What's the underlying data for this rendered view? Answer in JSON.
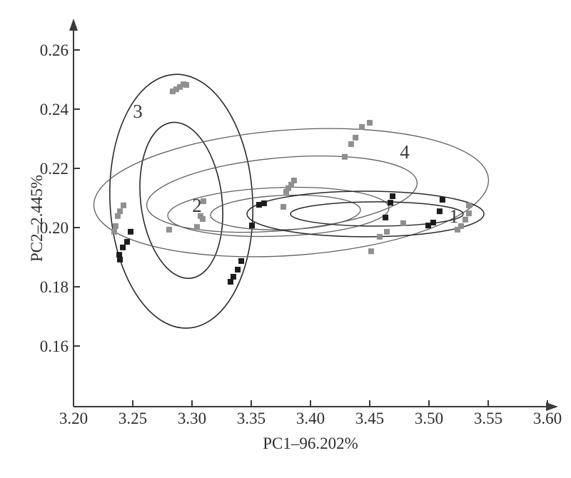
{
  "chart_data": {
    "type": "scatter",
    "title": "",
    "xlabel": "PC1–96.202%",
    "ylabel": "PC2–2.445%",
    "xlim": [
      3.2,
      3.6
    ],
    "ylim": [
      0.14,
      0.27
    ],
    "x_ticks": [
      3.2,
      3.25,
      3.3,
      3.35,
      3.4,
      3.45,
      3.5,
      3.55,
      3.6
    ],
    "y_ticks": [
      0.16,
      0.18,
      0.2,
      0.22,
      0.24,
      0.26
    ],
    "grid": false,
    "legend_position": "none",
    "marker": "square",
    "colors": {
      "axis": "#3a3a3a",
      "tick_text": "#2e2e2e",
      "black_marker": "#1c1c1c",
      "gray_marker": "#8f8f8f",
      "dark_ellipse": "#2a2a2a",
      "gray_ellipse": "#5f5f5f"
    },
    "group_labels": [
      {
        "text": "1",
        "x": 3.5211,
        "y": 0.2039
      },
      {
        "text": "2",
        "x": 3.3042,
        "y": 0.2075
      },
      {
        "text": "3",
        "x": 3.2542,
        "y": 0.2393
      },
      {
        "text": "4",
        "x": 3.4795,
        "y": 0.2255
      }
    ],
    "ellipses": [
      {
        "group": "3-outer",
        "cx": 3.291,
        "cy": 0.2089,
        "rx": 0.0602,
        "ry": 0.0429,
        "rot": -3,
        "color": "#2a2a2a",
        "width": 1.6
      },
      {
        "group": "3-inner",
        "cx": 3.291,
        "cy": 0.2092,
        "rx": 0.0343,
        "ry": 0.0265,
        "rot": -7,
        "color": "#2a2a2a",
        "width": 1.6
      },
      {
        "group": "4-outer",
        "cx": 3.3837,
        "cy": 0.2118,
        "rx": 0.1669,
        "ry": 0.0212,
        "rot": -4,
        "color": "#5f5f5f",
        "width": 1.3
      },
      {
        "group": "4-inner",
        "cx": 3.3759,
        "cy": 0.2113,
        "rx": 0.1145,
        "ry": 0.0123,
        "rot": -5,
        "color": "#5f5f5f",
        "width": 1.3
      },
      {
        "group": "2-outer",
        "cx": 3.3729,
        "cy": 0.2053,
        "rx": 0.0934,
        "ry": 0.0082,
        "rot": -2,
        "color": "#5f5f5f",
        "width": 1.3
      },
      {
        "group": "2-inner",
        "cx": 3.3789,
        "cy": 0.2051,
        "rx": 0.0633,
        "ry": 0.0058,
        "rot": -2,
        "color": "#5f5f5f",
        "width": 1.3
      },
      {
        "group": "1-outer",
        "cx": 3.4464,
        "cy": 0.2046,
        "rx": 0.1,
        "ry": 0.0077,
        "rot": 0,
        "color": "#2a2a2a",
        "width": 1.5
      },
      {
        "group": "1-inner",
        "cx": 3.456,
        "cy": 0.2046,
        "rx": 0.0729,
        "ry": 0.0041,
        "rot": 0,
        "color": "#2a2a2a",
        "width": 1.5
      }
    ],
    "series": [
      {
        "name": "black-squares",
        "color": "#1c1c1c",
        "points": [
          [
            3.2482,
            0.1986
          ],
          [
            3.2452,
            0.1952
          ],
          [
            3.2416,
            0.1933
          ],
          [
            3.2386,
            0.1908
          ],
          [
            3.2392,
            0.1892
          ],
          [
            3.3416,
            0.1887
          ],
          [
            3.3386,
            0.1858
          ],
          [
            3.3349,
            0.1834
          ],
          [
            3.3325,
            0.1817
          ],
          [
            3.3566,
            0.2077
          ],
          [
            3.3608,
            0.2082
          ],
          [
            3.3506,
            0.2007
          ],
          [
            3.4693,
            0.2106
          ],
          [
            3.4675,
            0.2084
          ],
          [
            3.4633,
            0.2034
          ],
          [
            3.5114,
            0.2094
          ],
          [
            3.509,
            0.2055
          ],
          [
            3.5036,
            0.2017
          ],
          [
            3.4994,
            0.2007
          ]
        ]
      },
      {
        "name": "gray-squares",
        "color": "#8f8f8f",
        "points": [
          [
            3.2837,
            0.246
          ],
          [
            3.2867,
            0.2467
          ],
          [
            3.2898,
            0.2475
          ],
          [
            3.2928,
            0.2484
          ],
          [
            3.2952,
            0.2482
          ],
          [
            3.2422,
            0.2075
          ],
          [
            3.2392,
            0.2055
          ],
          [
            3.2373,
            0.2039
          ],
          [
            3.2355,
            0.2005
          ],
          [
            3.2343,
            0.1986
          ],
          [
            3.3096,
            0.2089
          ],
          [
            3.3072,
            0.2039
          ],
          [
            3.309,
            0.2029
          ],
          [
            3.3042,
            0.2002
          ],
          [
            3.2807,
            0.1993
          ],
          [
            3.3861,
            0.2159
          ],
          [
            3.3837,
            0.2145
          ],
          [
            3.3813,
            0.2133
          ],
          [
            3.3795,
            0.2121
          ],
          [
            3.3771,
            0.207
          ],
          [
            3.45,
            0.2354
          ],
          [
            3.4434,
            0.234
          ],
          [
            3.438,
            0.2304
          ],
          [
            3.4343,
            0.2282
          ],
          [
            3.4289,
            0.2239
          ],
          [
            3.4783,
            0.2015
          ],
          [
            3.4645,
            0.1986
          ],
          [
            3.4584,
            0.1969
          ],
          [
            3.4512,
            0.192
          ],
          [
            3.5337,
            0.2075
          ],
          [
            3.5337,
            0.2048
          ],
          [
            3.5307,
            0.2027
          ],
          [
            3.5271,
            0.2005
          ],
          [
            3.5241,
            0.1993
          ]
        ]
      }
    ]
  }
}
